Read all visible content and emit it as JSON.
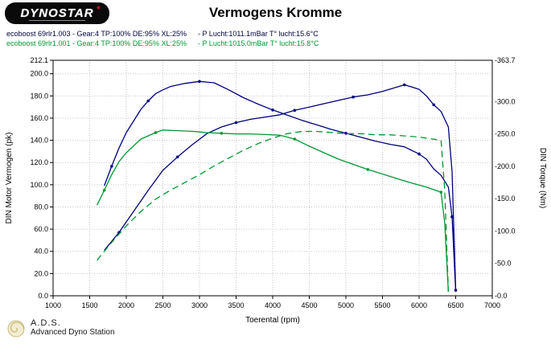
{
  "header": {
    "logo_text": "DYNOSTAR",
    "title": "Vermogens Kromme"
  },
  "runs": [
    {
      "label": "ecoboost 69rlr1.003 - Gear:4 TP:100% DE:95% XL:25%",
      "conditions": "- P Lucht:1011.1mBar T° lucht:15.6°C",
      "color": "#000040"
    },
    {
      "label": "ecoboost 69rlr1.001 - Gear:4 TP:100% DE:95% XL:25%",
      "conditions": "- P Lucht:1015.0mBar T° lucht:15.8°C",
      "color": "#009933"
    }
  ],
  "footer": {
    "abbr": "A.D.S.",
    "name": "Advanced Dyno Station"
  },
  "chart_data": {
    "type": "line",
    "title": "Vermogens Kromme",
    "grid": true,
    "legend_position": "top-left-above-plot",
    "x": {
      "label": "Toerental (rpm)",
      "min": 1000,
      "max": 7000,
      "tick_step": 500,
      "ticks": [
        "1000",
        "1500",
        "2000",
        "2500",
        "3000",
        "3500",
        "4000",
        "4500",
        "5000",
        "5500",
        "6000",
        "6500",
        "7000"
      ]
    },
    "y_left": {
      "label": "DIN Motor Vermogen (pk)",
      "min": 0,
      "max": 212.1,
      "ticks": [
        {
          "v": 212.1,
          "label": "212.1"
        },
        {
          "v": 200,
          "label": "200.0"
        },
        {
          "v": 180,
          "label": "180.0"
        },
        {
          "v": 160,
          "label": "160.0"
        },
        {
          "v": 140,
          "label": "140.0"
        },
        {
          "v": 120,
          "label": "120.0"
        },
        {
          "v": 100,
          "label": "100.0"
        },
        {
          "v": 80,
          "label": "80.0"
        },
        {
          "v": 60,
          "label": "60.0"
        },
        {
          "v": 40,
          "label": "40.0"
        },
        {
          "v": 20,
          "label": "20.0"
        },
        {
          "v": 0,
          "label": "0.0"
        }
      ]
    },
    "y_right": {
      "label": "DIN Torque (Nm)",
      "min": 0,
      "max": 363.7,
      "ticks": [
        {
          "v": 363.7,
          "label": "-363.7"
        },
        {
          "v": 300,
          "label": "-300.0"
        },
        {
          "v": 250,
          "label": "-250.0"
        },
        {
          "v": 200,
          "label": "-200.0"
        },
        {
          "v": 150,
          "label": "-150.0"
        },
        {
          "v": 100,
          "label": "-100.0"
        },
        {
          "v": 50,
          "label": "-50.0"
        },
        {
          "v": 0,
          "label": "-0.0"
        }
      ]
    },
    "series": [
      {
        "name": "power ecoboost 69rlr1.003 (pk)",
        "axis": "left",
        "color": "#000080",
        "dash": "solid",
        "marker_every": 4,
        "points": [
          [
            1700,
            41
          ],
          [
            1900,
            57
          ],
          [
            2100,
            76
          ],
          [
            2300,
            95
          ],
          [
            2500,
            113
          ],
          [
            2700,
            125
          ],
          [
            2900,
            136
          ],
          [
            3100,
            146
          ],
          [
            3300,
            152
          ],
          [
            3500,
            156
          ],
          [
            3700,
            159
          ],
          [
            3900,
            161
          ],
          [
            4100,
            163
          ],
          [
            4300,
            167
          ],
          [
            4500,
            170
          ],
          [
            4700,
            173
          ],
          [
            4900,
            176
          ],
          [
            5100,
            179
          ],
          [
            5300,
            181
          ],
          [
            5500,
            184
          ],
          [
            5700,
            188
          ],
          [
            5800,
            190
          ],
          [
            5900,
            188
          ],
          [
            6000,
            186
          ],
          [
            6100,
            180
          ],
          [
            6200,
            172
          ],
          [
            6300,
            166
          ],
          [
            6400,
            152
          ],
          [
            6450,
            112
          ],
          [
            6500,
            5
          ]
        ]
      },
      {
        "name": "torque ecoboost 69rlr1.003 (Nm)",
        "axis": "right",
        "color": "#000080",
        "dash": "solid",
        "marker_every": 5,
        "points": [
          [
            1700,
            170
          ],
          [
            1800,
            200
          ],
          [
            1900,
            228
          ],
          [
            2000,
            252
          ],
          [
            2100,
            270
          ],
          [
            2200,
            288
          ],
          [
            2300,
            301
          ],
          [
            2400,
            312
          ],
          [
            2500,
            318
          ],
          [
            2600,
            323
          ],
          [
            2800,
            328
          ],
          [
            3000,
            331
          ],
          [
            3200,
            329
          ],
          [
            3400,
            318
          ],
          [
            3600,
            306
          ],
          [
            3800,
            296
          ],
          [
            4000,
            287
          ],
          [
            4200,
            279
          ],
          [
            4400,
            271
          ],
          [
            4600,
            264
          ],
          [
            4800,
            257
          ],
          [
            5000,
            251
          ],
          [
            5200,
            245
          ],
          [
            5400,
            239
          ],
          [
            5600,
            234
          ],
          [
            5800,
            230
          ],
          [
            6000,
            219
          ],
          [
            6100,
            211
          ],
          [
            6200,
            196
          ],
          [
            6300,
            186
          ],
          [
            6400,
            168
          ],
          [
            6450,
            122
          ],
          [
            6500,
            8
          ]
        ]
      },
      {
        "name": "power ecoboost 69rlr1.001 (pk)",
        "axis": "left",
        "color": "#009933",
        "dash": "dashed",
        "marker_every": 0,
        "points": [
          [
            1600,
            32
          ],
          [
            1800,
            48
          ],
          [
            2000,
            63
          ],
          [
            2200,
            76
          ],
          [
            2400,
            87
          ],
          [
            2600,
            95
          ],
          [
            2800,
            102
          ],
          [
            3000,
            109
          ],
          [
            3200,
            117
          ],
          [
            3400,
            124
          ],
          [
            3600,
            131
          ],
          [
            3800,
            137
          ],
          [
            4000,
            142
          ],
          [
            4200,
            146
          ],
          [
            4400,
            148
          ],
          [
            4600,
            148
          ],
          [
            4800,
            147
          ],
          [
            5000,
            146
          ],
          [
            5200,
            146
          ],
          [
            5400,
            145
          ],
          [
            5600,
            145
          ],
          [
            5800,
            144
          ],
          [
            6000,
            143
          ],
          [
            6200,
            141
          ],
          [
            6300,
            140
          ],
          [
            6350,
            95
          ],
          [
            6400,
            4
          ]
        ]
      },
      {
        "name": "torque ecoboost 69rlr1.001 (Nm)",
        "axis": "right",
        "color": "#009933",
        "dash": "solid",
        "marker_every": 5,
        "points": [
          [
            1600,
            140
          ],
          [
            1700,
            163
          ],
          [
            1800,
            187
          ],
          [
            1900,
            207
          ],
          [
            2000,
            221
          ],
          [
            2200,
            242
          ],
          [
            2400,
            252
          ],
          [
            2500,
            256
          ],
          [
            2700,
            255
          ],
          [
            2900,
            254
          ],
          [
            3100,
            252
          ],
          [
            3300,
            251
          ],
          [
            3500,
            250
          ],
          [
            3700,
            250
          ],
          [
            3900,
            249
          ],
          [
            4100,
            248
          ],
          [
            4300,
            242
          ],
          [
            4500,
            231
          ],
          [
            4700,
            221
          ],
          [
            4900,
            211
          ],
          [
            5100,
            203
          ],
          [
            5300,
            195
          ],
          [
            5500,
            188
          ],
          [
            5700,
            181
          ],
          [
            5900,
            174
          ],
          [
            6100,
            168
          ],
          [
            6300,
            160
          ],
          [
            6350,
            112
          ],
          [
            6400,
            6
          ]
        ]
      }
    ]
  }
}
